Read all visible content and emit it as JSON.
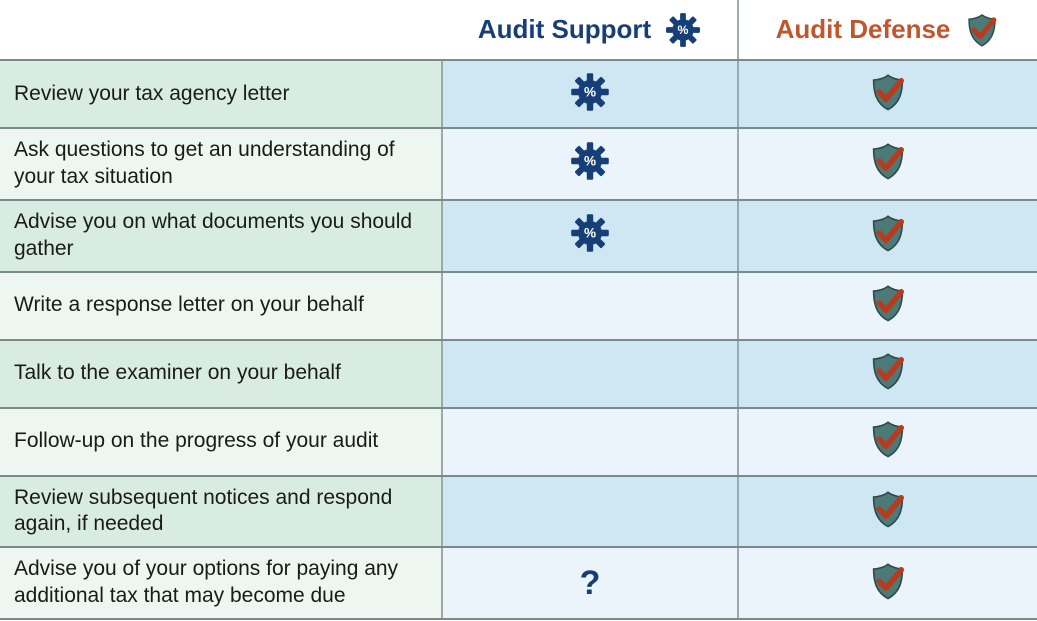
{
  "colors": {
    "support_title": "#163e77",
    "defense_title": "#c0562d",
    "gear_fill": "#163e77",
    "gear_text": "#ffffff",
    "shield_fill": "#4b7a78",
    "shield_stroke": "#2e4a49",
    "check_fill": "#b93b1d",
    "question": "#163e77",
    "feature_bg_a": "#d9ece1",
    "feature_bg_b": "#eef6f1",
    "support_bg_a": "#cfe7f3",
    "support_bg_b": "#eaf4fa",
    "defense_bg_a": "#cfe7f3",
    "defense_bg_b": "#eaf4fa",
    "border": "#7a8a8a",
    "vdiv": "#9aaab0"
  },
  "header": {
    "support_label": "Audit Support",
    "defense_label": "Audit Defense"
  },
  "rows": [
    {
      "feature": "Review your tax agency letter",
      "support": "gear",
      "defense": "shield"
    },
    {
      "feature": "Ask questions to get an understanding of your tax situation",
      "support": "gear",
      "defense": "shield"
    },
    {
      "feature": "Advise you on what documents you should gather",
      "support": "gear",
      "defense": "shield"
    },
    {
      "feature": "Write a response letter on your behalf",
      "support": "none",
      "defense": "shield"
    },
    {
      "feature": "Talk to the examiner on your behalf",
      "support": "none",
      "defense": "shield"
    },
    {
      "feature": "Follow-up on the progress of your audit",
      "support": "none",
      "defense": "shield"
    },
    {
      "feature": "Review subsequent notices and respond again, if needed",
      "support": "none",
      "defense": "shield"
    },
    {
      "feature": "Advise you of your options for paying any additional tax that may become due",
      "support": "question",
      "defense": "shield"
    }
  ],
  "question_glyph": "?"
}
